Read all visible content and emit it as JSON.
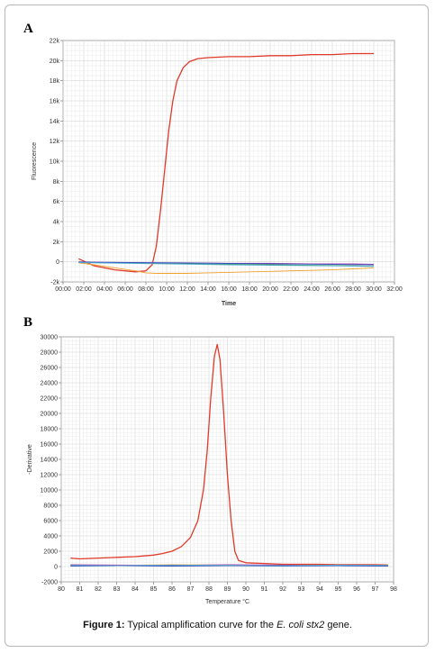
{
  "caption": {
    "label": "Figure 1:",
    "text_before": " Typical amplification curve for the ",
    "organism": "E. coli",
    "space": " ",
    "gene": "stx2",
    "text_after": " gene."
  },
  "chart_data": [
    {
      "panel": "A",
      "type": "line",
      "title": "",
      "xlabel": "Time",
      "ylabel": "Fluorescence",
      "xlim": [
        0,
        32
      ],
      "ylim": [
        -2000,
        22000
      ],
      "x_ticks": [
        "00:00",
        "02:00",
        "04:00",
        "06:00",
        "08:00",
        "10:00",
        "12:00",
        "14:00",
        "16:00",
        "18:00",
        "20:00",
        "22:00",
        "24:00",
        "26:00",
        "28:00",
        "30:00",
        "32:00"
      ],
      "y_ticks": [
        "-2k",
        "0",
        "2k",
        "4k",
        "6k",
        "8k",
        "10k",
        "12k",
        "14k",
        "16k",
        "18k",
        "20k",
        "22k"
      ],
      "grid": true,
      "series": [
        {
          "color": "#e03a2a",
          "x": [
            1.5,
            3,
            5,
            7,
            8,
            8.6,
            9,
            9.4,
            9.8,
            10.2,
            10.6,
            11,
            11.6,
            12.2,
            13,
            14,
            16,
            18,
            20,
            22,
            24,
            26,
            28,
            30
          ],
          "y": [
            300,
            -400,
            -800,
            -1000,
            -900,
            -300,
            1500,
            5000,
            9000,
            13000,
            16000,
            18000,
            19300,
            19900,
            20200,
            20300,
            20400,
            20400,
            20500,
            20500,
            20600,
            20600,
            20700,
            20700
          ]
        },
        {
          "color": "#f0a030",
          "x": [
            1.5,
            3,
            5,
            7,
            8,
            9,
            10,
            12,
            14,
            16,
            18,
            20,
            22,
            24,
            26,
            28,
            30
          ],
          "y": [
            -100,
            -300,
            -600,
            -900,
            -1100,
            -1150,
            -1150,
            -1150,
            -1100,
            -1050,
            -1000,
            -950,
            -900,
            -850,
            -800,
            -700,
            -600
          ]
        },
        {
          "color": "#3a9a3a",
          "x": [
            1.5,
            4,
            8,
            12,
            16,
            20,
            24,
            28,
            30
          ],
          "y": [
            -50,
            -100,
            -150,
            -200,
            -250,
            -300,
            -350,
            -400,
            -450
          ]
        },
        {
          "color": "#b040b0",
          "x": [
            1.5,
            4,
            8,
            12,
            16,
            20,
            24,
            28,
            30
          ],
          "y": [
            0,
            -50,
            -100,
            -100,
            -150,
            -150,
            -200,
            -200,
            -250
          ]
        },
        {
          "color": "#3050c0",
          "x": [
            1.5,
            4,
            8,
            12,
            16,
            20,
            24,
            28,
            30
          ],
          "y": [
            -20,
            -60,
            -80,
            -120,
            -160,
            -200,
            -240,
            -280,
            -300
          ]
        },
        {
          "color": "#50b0d0",
          "x": [
            1.5,
            4,
            8,
            12,
            16,
            20,
            24,
            28,
            30
          ],
          "y": [
            -80,
            -120,
            -180,
            -240,
            -300,
            -350,
            -380,
            -420,
            -460
          ]
        }
      ]
    },
    {
      "panel": "B",
      "type": "line",
      "title": "",
      "xlabel": "Temperature °C",
      "ylabel": "-Derivative",
      "xlim": [
        80,
        98
      ],
      "ylim": [
        -2000,
        30000
      ],
      "x_ticks": [
        "80",
        "81",
        "82",
        "83",
        "84",
        "85",
        "86",
        "87",
        "88",
        "89",
        "90",
        "91",
        "92",
        "93",
        "94",
        "95",
        "96",
        "97",
        "98"
      ],
      "y_ticks": [
        "-2000",
        "0",
        "2000",
        "4000",
        "6000",
        "8000",
        "10000",
        "12000",
        "14000",
        "16000",
        "18000",
        "20000",
        "22000",
        "24000",
        "26000",
        "28000",
        "30000"
      ],
      "grid": true,
      "series": [
        {
          "color": "#e03a2a",
          "x": [
            80.5,
            81,
            82,
            83,
            84,
            85,
            85.5,
            86,
            86.5,
            87,
            87.4,
            87.7,
            87.9,
            88.1,
            88.3,
            88.45,
            88.6,
            88.8,
            89,
            89.2,
            89.4,
            89.6,
            90,
            91,
            92,
            93,
            94,
            95,
            96,
            97,
            97.7
          ],
          "y": [
            1100,
            1000,
            1100,
            1200,
            1300,
            1500,
            1700,
            2000,
            2600,
            3800,
            6000,
            10000,
            15000,
            22000,
            27500,
            29000,
            27000,
            20000,
            12000,
            6000,
            2000,
            800,
            500,
            400,
            300,
            300,
            300,
            250,
            250,
            250,
            200
          ]
        },
        {
          "color": "#f0a030",
          "x": [
            80.5,
            83,
            86,
            89,
            92,
            95,
            97.7
          ],
          "y": [
            200,
            150,
            250,
            200,
            150,
            200,
            100
          ]
        },
        {
          "color": "#3a9a3a",
          "x": [
            80.5,
            83,
            86,
            89,
            92,
            95,
            97.7
          ],
          "y": [
            100,
            150,
            100,
            200,
            100,
            150,
            100
          ]
        },
        {
          "color": "#b040b0",
          "x": [
            80.5,
            83,
            86,
            89,
            92,
            95,
            97.7
          ],
          "y": [
            250,
            200,
            150,
            250,
            200,
            100,
            150
          ]
        },
        {
          "color": "#3050c0",
          "x": [
            80.5,
            83,
            86,
            89,
            92,
            95,
            97.7
          ],
          "y": [
            50,
            100,
            50,
            100,
            50,
            100,
            50
          ]
        },
        {
          "color": "#50b0d0",
          "x": [
            80.5,
            83,
            86,
            89,
            92,
            95,
            97.7
          ],
          "y": [
            150,
            100,
            200,
            150,
            100,
            200,
            150
          ]
        }
      ]
    }
  ]
}
